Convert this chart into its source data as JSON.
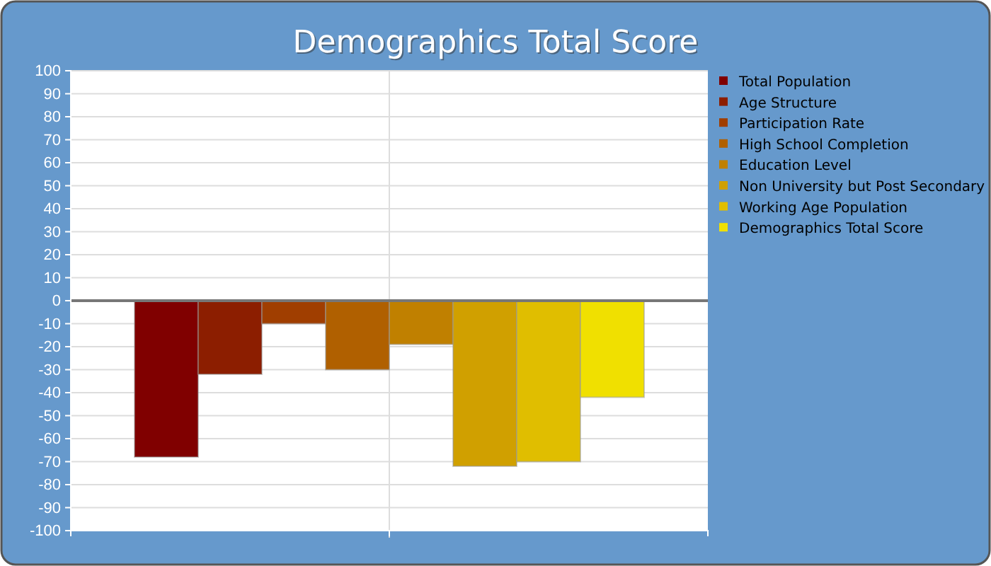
{
  "chart_data": {
    "type": "bar",
    "title": "Demographics Total Score",
    "categories": [
      null
    ],
    "series": [
      {
        "name": "Total Population",
        "color": "#800000",
        "values": [
          -68
        ]
      },
      {
        "name": "Age Structure",
        "color": "#8c1e00",
        "values": [
          -32
        ]
      },
      {
        "name": "Participation Rate",
        "color": "#a03e00",
        "values": [
          -10
        ]
      },
      {
        "name": "High School Completion",
        "color": "#b06000",
        "values": [
          -30
        ]
      },
      {
        "name": "Education Level",
        "color": "#c08000",
        "values": [
          -19
        ]
      },
      {
        "name": "Non University but Post Secondary",
        "color": "#d0a000",
        "values": [
          -72
        ]
      },
      {
        "name": "Working Age Population",
        "color": "#e0be00",
        "values": [
          -70
        ]
      },
      {
        "name": "Demographics Total Score",
        "color": "#f0e000",
        "values": [
          -42
        ]
      }
    ],
    "ylim": [
      -100,
      100
    ],
    "yticks": [
      -100,
      -90,
      -80,
      -70,
      -60,
      -50,
      -40,
      -30,
      -20,
      -10,
      0,
      10,
      20,
      30,
      40,
      50,
      60,
      70,
      80,
      90,
      100
    ],
    "grid": true,
    "legend": "right"
  }
}
